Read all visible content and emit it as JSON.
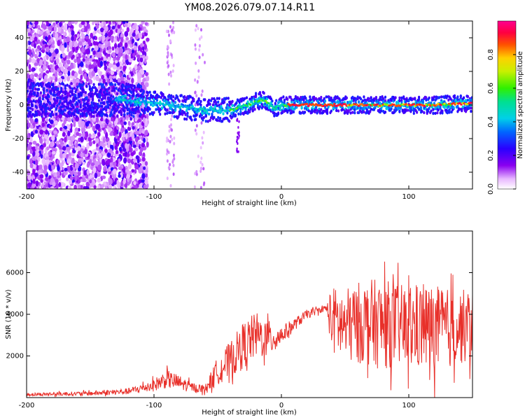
{
  "title": "YM08.2026.079.07.14.R11",
  "chart_data": [
    {
      "type": "heatmap",
      "xlabel": "Height of straight line (km)",
      "ylabel": "Frequency (Hz)",
      "xlim": [
        -200,
        150
      ],
      "ylim": [
        -50,
        50
      ],
      "xticks": [
        -200,
        -100,
        0,
        100
      ],
      "yticks": [
        -40,
        -20,
        0,
        20,
        40
      ],
      "colorbar": {
        "label": "Normalized spectral amplitude",
        "range": [
          0,
          1
        ],
        "ticks": [
          "0.0",
          "0.2",
          "0.4",
          "0.6",
          "0.8"
        ],
        "colormap": "rainbow (white-violet-blue-cyan-green-yellow-red-magenta)"
      },
      "ridge": {
        "description": "dominant-frequency ridge",
        "x": [
          -120,
          -100,
          -80,
          -60,
          -40,
          -30,
          -20,
          -15,
          -10,
          -5,
          0,
          10,
          40,
          60,
          80,
          100,
          120,
          150
        ],
        "y": [
          3,
          1,
          -1,
          -3,
          -3,
          -1,
          2,
          3,
          1,
          -2,
          0,
          0,
          0,
          0,
          0,
          0,
          0,
          1
        ]
      }
    },
    {
      "type": "line",
      "xlabel": "Height of straight line (km)",
      "ylabel": "SNR (10 * v/v)",
      "xlim": [
        -200,
        150
      ],
      "ylim": [
        0,
        8000
      ],
      "xticks": [
        -200,
        -100,
        0,
        100
      ],
      "yticks": [
        2000,
        4000,
        6000
      ],
      "series": [
        {
          "name": "SNR",
          "color": "#e8302a",
          "x": [
            -200,
            -150,
            -120,
            -100,
            -90,
            -80,
            -70,
            -60,
            -50,
            -40,
            -30,
            -20,
            -10,
            0,
            10,
            20,
            30,
            35,
            40,
            50,
            60,
            70,
            80,
            90,
            100,
            110,
            120,
            130,
            140,
            150
          ],
          "mean": [
            150,
            200,
            300,
            600,
            900,
            700,
            500,
            400,
            1300,
            1800,
            2500,
            3000,
            2800,
            3000,
            3500,
            4000,
            4200,
            4300,
            3700,
            3400,
            3600,
            3600,
            3500,
            3500,
            3300,
            3400,
            3300,
            3300,
            3400,
            3400
          ],
          "amp": [
            100,
            150,
            200,
            400,
            600,
            500,
            300,
            250,
            900,
            1200,
            1500,
            1500,
            1200,
            600,
            400,
            300,
            200,
            200,
            2200,
            2400,
            2600,
            2800,
            2900,
            2700,
            2700,
            2800,
            2800,
            2600,
            2400,
            2400
          ]
        }
      ]
    }
  ]
}
